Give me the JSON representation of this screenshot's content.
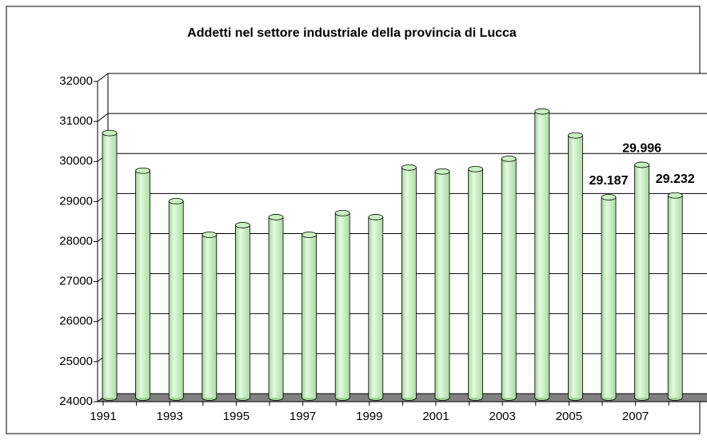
{
  "chart_data": {
    "type": "bar3d",
    "title": "Addetti nel settore industriale della provincia di Lucca",
    "categories": [
      "1991",
      null,
      "1993",
      null,
      "1995",
      null,
      "1997",
      null,
      "1999",
      null,
      "2001",
      null,
      "2003",
      null,
      "2005",
      null,
      "2007",
      null
    ],
    "values": [
      30790,
      29850,
      29090,
      28250,
      28490,
      28690,
      28250,
      28790,
      28690,
      29930,
      29830,
      29890,
      30150,
      31330,
      30730,
      29187,
      29996,
      29232
    ],
    "value_labels": [
      null,
      null,
      null,
      null,
      null,
      null,
      null,
      null,
      null,
      null,
      null,
      null,
      null,
      null,
      null,
      "29.187",
      "29.996",
      "29.232"
    ],
    "color": "#c8f0c0",
    "ylim": [
      24000,
      32000
    ],
    "yticks": [
      24000,
      25000,
      26000,
      27000,
      28000,
      29000,
      30000,
      31000,
      32000
    ],
    "grid": true
  }
}
